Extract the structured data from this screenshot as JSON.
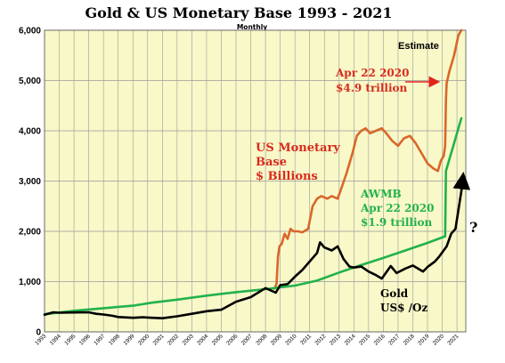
{
  "chart_data": {
    "type": "line",
    "title": "Gold & US Monetary Base 1993 - 2021",
    "subtitle": "Monthly",
    "xlabel": "",
    "ylabel": "",
    "xlim": [
      1993,
      2021.6
    ],
    "ylim": [
      0,
      6000
    ],
    "grid": true,
    "legend": "none",
    "x_ticks": [
      "1993",
      "1994",
      "1995",
      "1996",
      "1997",
      "1998",
      "1999",
      "2000",
      "2001",
      "2002",
      "2003",
      "2004",
      "2005",
      "2006",
      "2007",
      "2008",
      "2009",
      "2010",
      "2011",
      "2012",
      "2013",
      "2014",
      "2015",
      "2016",
      "2017",
      "2018",
      "2019",
      "2020",
      "2021"
    ],
    "y_ticks": [
      "0",
      "1,000",
      "2,000",
      "3,000",
      "4,000",
      "5,000",
      "6,000"
    ],
    "series": [
      {
        "name": "US Monetary Base $ Billions",
        "color": "#d9672a",
        "points": [
          [
            2008.6,
            860
          ],
          [
            2008.75,
            950
          ],
          [
            2008.85,
            1500
          ],
          [
            2008.95,
            1700
          ],
          [
            2009.1,
            1750
          ],
          [
            2009.3,
            1950
          ],
          [
            2009.5,
            1850
          ],
          [
            2009.7,
            2050
          ],
          [
            2009.9,
            2000
          ],
          [
            2010.2,
            2000
          ],
          [
            2010.5,
            1980
          ],
          [
            2010.9,
            2050
          ],
          [
            2011.2,
            2500
          ],
          [
            2011.5,
            2650
          ],
          [
            2011.8,
            2700
          ],
          [
            2012.2,
            2650
          ],
          [
            2012.5,
            2700
          ],
          [
            2012.9,
            2650
          ],
          [
            2013.2,
            2900
          ],
          [
            2013.5,
            3150
          ],
          [
            2013.9,
            3550
          ],
          [
            2014.2,
            3900
          ],
          [
            2014.5,
            4000
          ],
          [
            2014.8,
            4050
          ],
          [
            2015.1,
            3950
          ],
          [
            2015.5,
            4000
          ],
          [
            2015.9,
            4050
          ],
          [
            2016.2,
            3950
          ],
          [
            2016.6,
            3800
          ],
          [
            2017.0,
            3700
          ],
          [
            2017.4,
            3850
          ],
          [
            2017.8,
            3900
          ],
          [
            2018.2,
            3750
          ],
          [
            2018.6,
            3550
          ],
          [
            2019.0,
            3350
          ],
          [
            2019.4,
            3250
          ],
          [
            2019.7,
            3200
          ],
          [
            2019.9,
            3400
          ],
          [
            2020.1,
            3500
          ],
          [
            2020.2,
            3700
          ],
          [
            2020.25,
            4600
          ],
          [
            2020.3,
            4950
          ],
          [
            2020.5,
            5200
          ],
          [
            2020.8,
            5500
          ],
          [
            2021.1,
            5900
          ],
          [
            2021.3,
            6000
          ]
        ]
      },
      {
        "name": "AWMB",
        "color": "#21b24b",
        "points": [
          [
            1993,
            350
          ],
          [
            1995,
            420
          ],
          [
            1997,
            470
          ],
          [
            1999,
            520
          ],
          [
            2000.3,
            580
          ],
          [
            2002,
            640
          ],
          [
            2004,
            720
          ],
          [
            2006,
            790
          ],
          [
            2008,
            850
          ],
          [
            2010,
            920
          ],
          [
            2011.5,
            1020
          ],
          [
            2013,
            1180
          ],
          [
            2014.5,
            1330
          ],
          [
            2016,
            1470
          ],
          [
            2017.5,
            1620
          ],
          [
            2019,
            1770
          ],
          [
            2020.2,
            1900
          ],
          [
            2020.25,
            3200
          ],
          [
            2020.5,
            3450
          ],
          [
            2020.8,
            3750
          ],
          [
            2021.1,
            4050
          ],
          [
            2021.3,
            4250
          ]
        ]
      },
      {
        "name": "Gold US$ /Oz",
        "color": "#000000",
        "points": [
          [
            1993,
            340
          ],
          [
            1993.6,
            390
          ],
          [
            1994,
            380
          ],
          [
            1995,
            385
          ],
          [
            1996,
            390
          ],
          [
            1996.5,
            360
          ],
          [
            1997,
            345
          ],
          [
            1997.6,
            320
          ],
          [
            1998,
            295
          ],
          [
            1999,
            280
          ],
          [
            1999.7,
            290
          ],
          [
            2000,
            285
          ],
          [
            2001,
            270
          ],
          [
            2002,
            310
          ],
          [
            2003,
            360
          ],
          [
            2004,
            410
          ],
          [
            2005,
            440
          ],
          [
            2006,
            600
          ],
          [
            2007,
            690
          ],
          [
            2008,
            870
          ],
          [
            2008.7,
            780
          ],
          [
            2009,
            930
          ],
          [
            2009.5,
            950
          ],
          [
            2010,
            1100
          ],
          [
            2010.5,
            1230
          ],
          [
            2011,
            1400
          ],
          [
            2011.5,
            1570
          ],
          [
            2011.7,
            1780
          ],
          [
            2012,
            1680
          ],
          [
            2012.5,
            1620
          ],
          [
            2012.9,
            1700
          ],
          [
            2013.3,
            1450
          ],
          [
            2013.7,
            1300
          ],
          [
            2014,
            1280
          ],
          [
            2014.5,
            1300
          ],
          [
            2015,
            1200
          ],
          [
            2015.5,
            1130
          ],
          [
            2015.9,
            1060
          ],
          [
            2016.5,
            1310
          ],
          [
            2016.9,
            1170
          ],
          [
            2017.5,
            1260
          ],
          [
            2018,
            1320
          ],
          [
            2018.7,
            1200
          ],
          [
            2019,
            1290
          ],
          [
            2019.5,
            1400
          ],
          [
            2019.8,
            1500
          ],
          [
            2020,
            1580
          ],
          [
            2020.3,
            1700
          ],
          [
            2020.6,
            1950
          ],
          [
            2020.9,
            2050
          ],
          [
            2021.3,
            2800
          ],
          [
            2021.4,
            3000
          ]
        ]
      }
    ],
    "annotations": {
      "estimate": "Estimate",
      "apr_red_line1": "Apr 22 2020",
      "apr_red_line2": "$4.9 trillion",
      "mb_line1": "US Monetary",
      "mb_line2": "Base",
      "mb_line3": "$ Billions",
      "awmb_line1": "AWMB",
      "awmb_line2": "Apr 22 2020",
      "awmb_line3": "$1.9 trillion",
      "question": "?",
      "gold_line1": "Gold",
      "gold_line2": "US$ /Oz"
    },
    "colors": {
      "plot_background": "#f8f8c8",
      "grid": "#9a9a9a",
      "arrow_red": "#e0241a",
      "arrow_black": "#000000"
    }
  }
}
